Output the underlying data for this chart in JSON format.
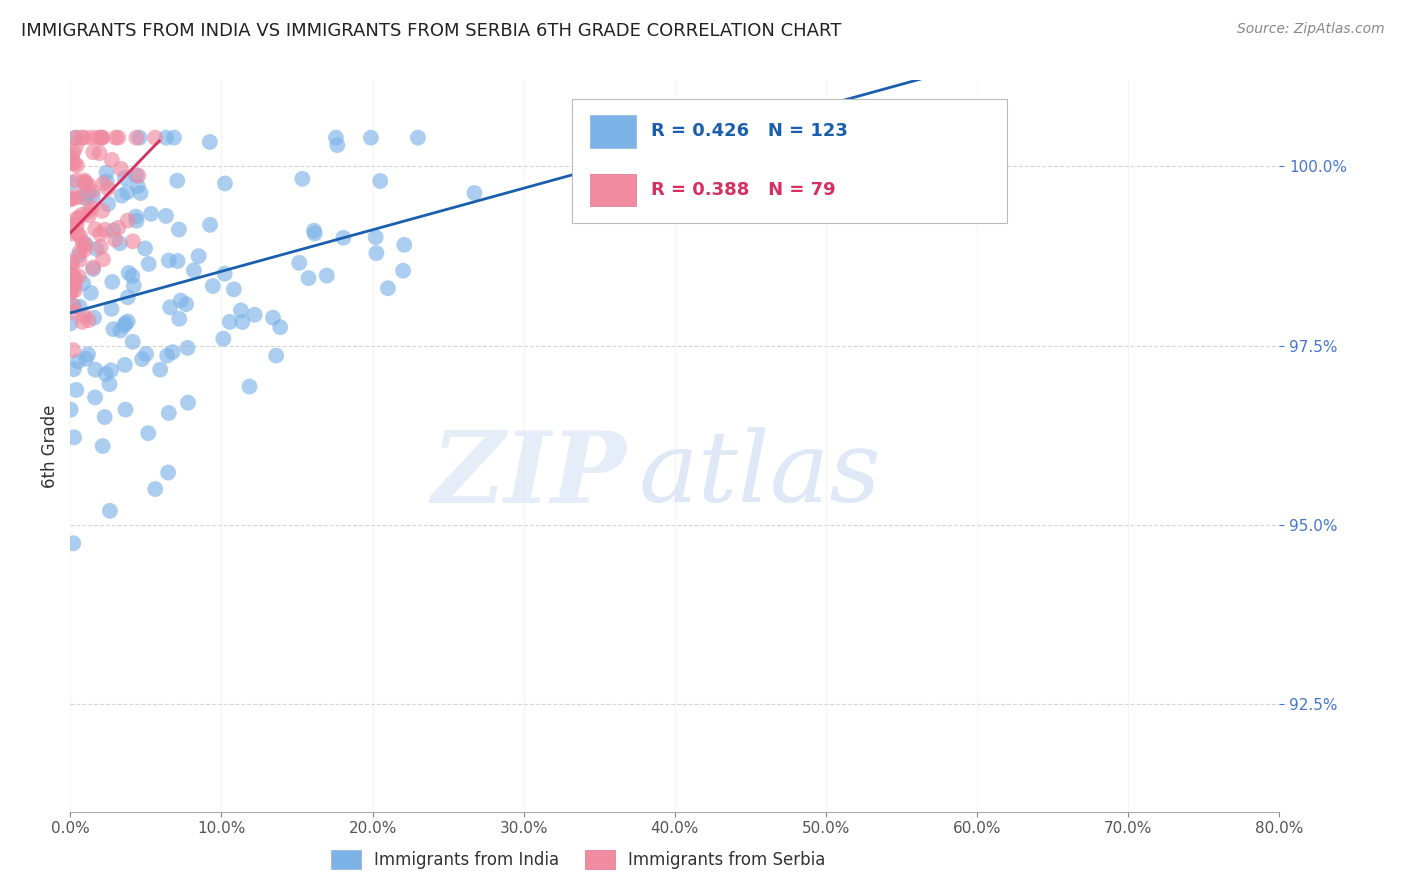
{
  "title": "IMMIGRANTS FROM INDIA VS IMMIGRANTS FROM SERBIA 6TH GRADE CORRELATION CHART",
  "source": "Source: ZipAtlas.com",
  "ylabel_label": "6th Grade",
  "x_min": 0.0,
  "x_max": 80.0,
  "y_min": 91.0,
  "y_max": 101.2,
  "yticks": [
    92.5,
    95.0,
    97.5,
    100.0
  ],
  "ytick_labels": [
    "92.5%",
    "95.0%",
    "97.5%",
    "100.0%"
  ],
  "xticks": [
    0,
    10,
    20,
    30,
    40,
    50,
    60,
    70,
    80
  ],
  "india_color": "#7eb3e8",
  "serbia_color": "#f08ba0",
  "india_line_color": "#1a5fad",
  "serbia_line_color": "#d43060",
  "india_R": 0.426,
  "india_N": 123,
  "serbia_R": 0.388,
  "serbia_N": 79,
  "watermark_zip": "ZIP",
  "watermark_atlas": "atlas",
  "legend_india": "Immigrants from India",
  "legend_serbia": "Immigrants from Serbia",
  "india_seed": 12,
  "serbia_seed": 99,
  "title_fontsize": 13,
  "source_fontsize": 10,
  "tick_fontsize": 11,
  "legend_fontsize": 12
}
